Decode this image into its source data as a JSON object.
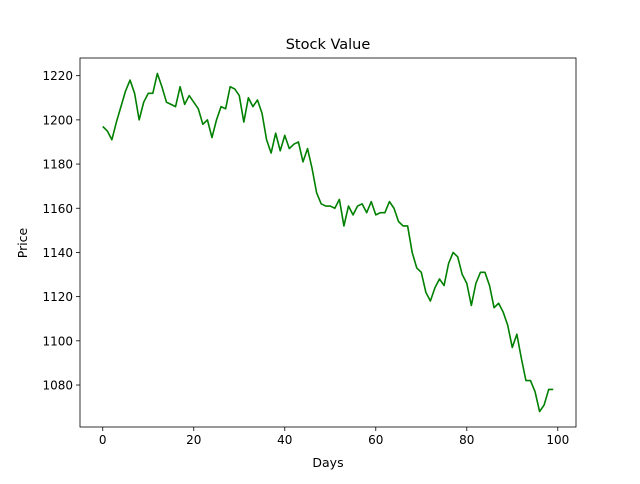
{
  "chart_data": {
    "type": "line",
    "title": "Stock Value",
    "xlabel": "Days",
    "ylabel": "Price",
    "xlim": [
      -5,
      104
    ],
    "ylim": [
      1061,
      1228
    ],
    "xticks": [
      0,
      20,
      40,
      60,
      80,
      100
    ],
    "yticks": [
      1080,
      1100,
      1120,
      1140,
      1160,
      1180,
      1200,
      1220
    ],
    "grid": false,
    "legend": "none",
    "series": [
      {
        "color": "#008000",
        "x": [
          0,
          1,
          2,
          3,
          4,
          5,
          6,
          7,
          8,
          9,
          10,
          11,
          12,
          13,
          14,
          15,
          16,
          17,
          18,
          19,
          20,
          21,
          22,
          23,
          24,
          25,
          26,
          27,
          28,
          29,
          30,
          31,
          32,
          33,
          34,
          35,
          36,
          37,
          38,
          39,
          40,
          41,
          42,
          43,
          44,
          45,
          46,
          47,
          48,
          49,
          50,
          51,
          52,
          53,
          54,
          55,
          56,
          57,
          58,
          59,
          60,
          61,
          62,
          63,
          64,
          65,
          66,
          67,
          68,
          69,
          70,
          71,
          72,
          73,
          74,
          75,
          76,
          77,
          78,
          79,
          80,
          81,
          82,
          83,
          84,
          85,
          86,
          87,
          88,
          89,
          90,
          91,
          92,
          93,
          94,
          95,
          96,
          97,
          98,
          99
        ],
        "y": [
          1197,
          1195,
          1191,
          1199,
          1206,
          1213,
          1218,
          1212,
          1200,
          1208,
          1212,
          1212,
          1221,
          1215,
          1208,
          1207,
          1206,
          1215,
          1207,
          1211,
          1208,
          1205,
          1198,
          1200,
          1192,
          1200,
          1206,
          1205,
          1215,
          1214,
          1211,
          1199,
          1210,
          1206,
          1209,
          1203,
          1191,
          1185,
          1194,
          1186,
          1193,
          1187,
          1189,
          1190,
          1181,
          1187,
          1178,
          1167,
          1162,
          1161,
          1161,
          1160,
          1164,
          1152,
          1161,
          1157,
          1161,
          1162,
          1158,
          1163,
          1157,
          1158,
          1158,
          1163,
          1160,
          1154,
          1152,
          1152,
          1140,
          1133,
          1131,
          1122,
          1118,
          1124,
          1128,
          1125,
          1135,
          1140,
          1138,
          1130,
          1126,
          1116,
          1126,
          1131,
          1131,
          1125,
          1115,
          1117,
          1113,
          1107,
          1097,
          1103,
          1092,
          1082,
          1082,
          1077,
          1068,
          1071,
          1078,
          1078
        ]
      }
    ]
  }
}
